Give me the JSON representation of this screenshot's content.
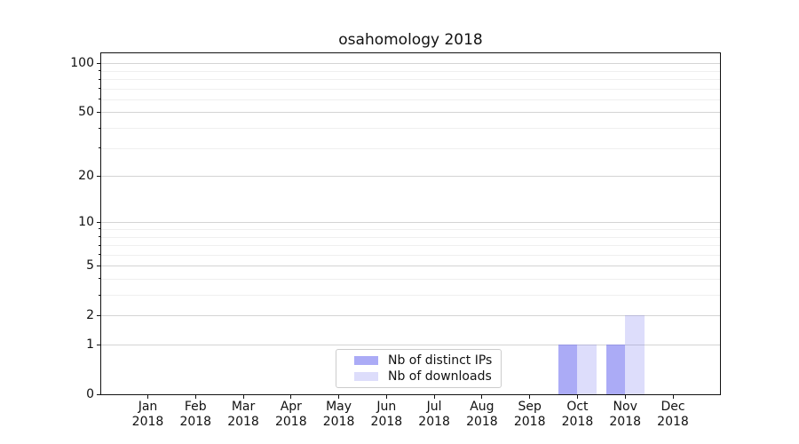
{
  "chart_data": {
    "type": "bar",
    "title": "osahomology 2018",
    "categories": [
      "Jan 2018",
      "Feb 2018",
      "Mar 2018",
      "Apr 2018",
      "May 2018",
      "Jun 2018",
      "Jul 2018",
      "Aug 2018",
      "Sep 2018",
      "Oct 2018",
      "Nov 2018",
      "Dec 2018"
    ],
    "series": [
      {
        "name": "Nb of distinct IPs",
        "color": "rgba(102,102,238,0.55)",
        "values": [
          0,
          0,
          0,
          0,
          0,
          0,
          0,
          0,
          0,
          1,
          1,
          0
        ]
      },
      {
        "name": "Nb of downloads",
        "color": "rgba(102,102,238,0.22)",
        "values": [
          0,
          0,
          0,
          0,
          0,
          0,
          0,
          0,
          0,
          1,
          2,
          0
        ]
      }
    ],
    "y_axis": {
      "scale": "log1p",
      "ticks": [
        0,
        1,
        2,
        5,
        10,
        20,
        50,
        100
      ],
      "minor_ticks": [
        3,
        4,
        6,
        7,
        8,
        9,
        30,
        40,
        60,
        70,
        80,
        90
      ],
      "max": 115
    },
    "x_axis": {
      "label_year_on_second_line": true
    },
    "grid": {
      "major_color": "#d4d4d4",
      "minor_color": "#efefef"
    },
    "legend": {
      "position": "lower center"
    }
  }
}
